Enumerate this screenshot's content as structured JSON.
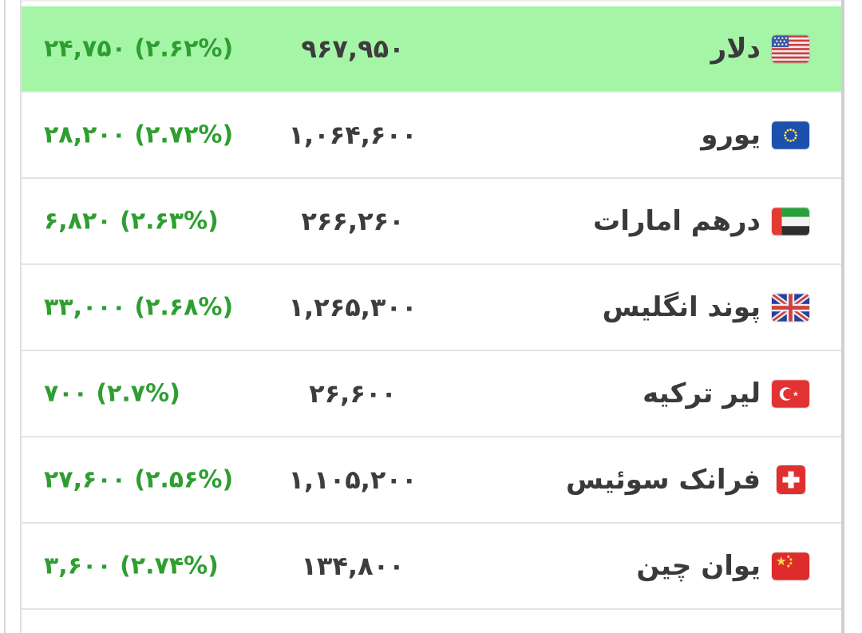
{
  "colors": {
    "highlight_row_bg": "#a5f5a7",
    "change_text_green": "#2f9e31",
    "price_text": "#3d3d3d",
    "currency_name_text": "#3a3a3a",
    "row_divider": "#e4e4e4"
  },
  "currency_table": {
    "rows": [
      {
        "name": "دلار",
        "flag_icon": "us-flag-icon",
        "price": "۹۶۷,۹۵۰",
        "change": "۲۴,۷۵۰ (۲.۶۲%)",
        "highlighted": true
      },
      {
        "name": "یورو",
        "flag_icon": "eu-flag-icon",
        "price": "۱,۰۶۴,۶۰۰",
        "change": "۲۸,۲۰۰ (۲.۷۲%)",
        "highlighted": false
      },
      {
        "name": "درهم امارات",
        "flag_icon": "uae-flag-icon",
        "price": "۲۶۶,۲۶۰",
        "change": "۶,۸۲۰ (۲.۶۳%)",
        "highlighted": false
      },
      {
        "name": "پوند انگلیس",
        "flag_icon": "uk-flag-icon",
        "price": "۱,۲۶۵,۳۰۰",
        "change": "۳۳,۰۰۰ (۲.۶۸%)",
        "highlighted": false
      },
      {
        "name": "لیر ترکیه",
        "flag_icon": "turkey-flag-icon",
        "price": "۲۶,۶۰۰",
        "change": "۷۰۰ (۲.۷%)",
        "highlighted": false
      },
      {
        "name": "فرانک سوئیس",
        "flag_icon": "switzerland-flag-icon",
        "price": "۱,۱۰۵,۲۰۰",
        "change": "۲۷,۶۰۰ (۲.۵۶%)",
        "highlighted": false
      },
      {
        "name": "یوان چین",
        "flag_icon": "china-flag-icon",
        "price": "۱۳۴,۸۰۰",
        "change": "۳,۶۰۰ (۲.۷۴%)",
        "highlighted": false
      }
    ]
  }
}
